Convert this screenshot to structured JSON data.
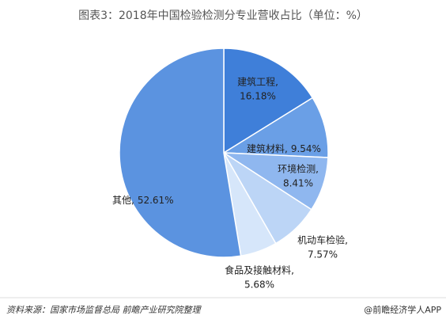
{
  "chart_data": {
    "type": "pie",
    "title": "图表3：2018年中国检验检测分专业营收占比（单位：%）",
    "categories": [
      "建筑工程,",
      "建筑材料,",
      "环境检测,",
      "机动车检验,",
      "食品及接触材料,",
      "其他,"
    ],
    "values": [
      16.18,
      9.54,
      8.41,
      7.57,
      5.68,
      52.61
    ],
    "value_labels": [
      "16.18%",
      "9.54%",
      "8.41%",
      "7.57%",
      "5.68%",
      "52.61%"
    ],
    "colors": [
      "#3f7fd9",
      "#6a9fe6",
      "#8fb7ef",
      "#bcd5f6",
      "#d6e6fa",
      "#5b93e0"
    ],
    "source": "资料来源：国家市场监督总局 前瞻产业研究院整理",
    "credit": "@前瞻经济学人APP"
  }
}
